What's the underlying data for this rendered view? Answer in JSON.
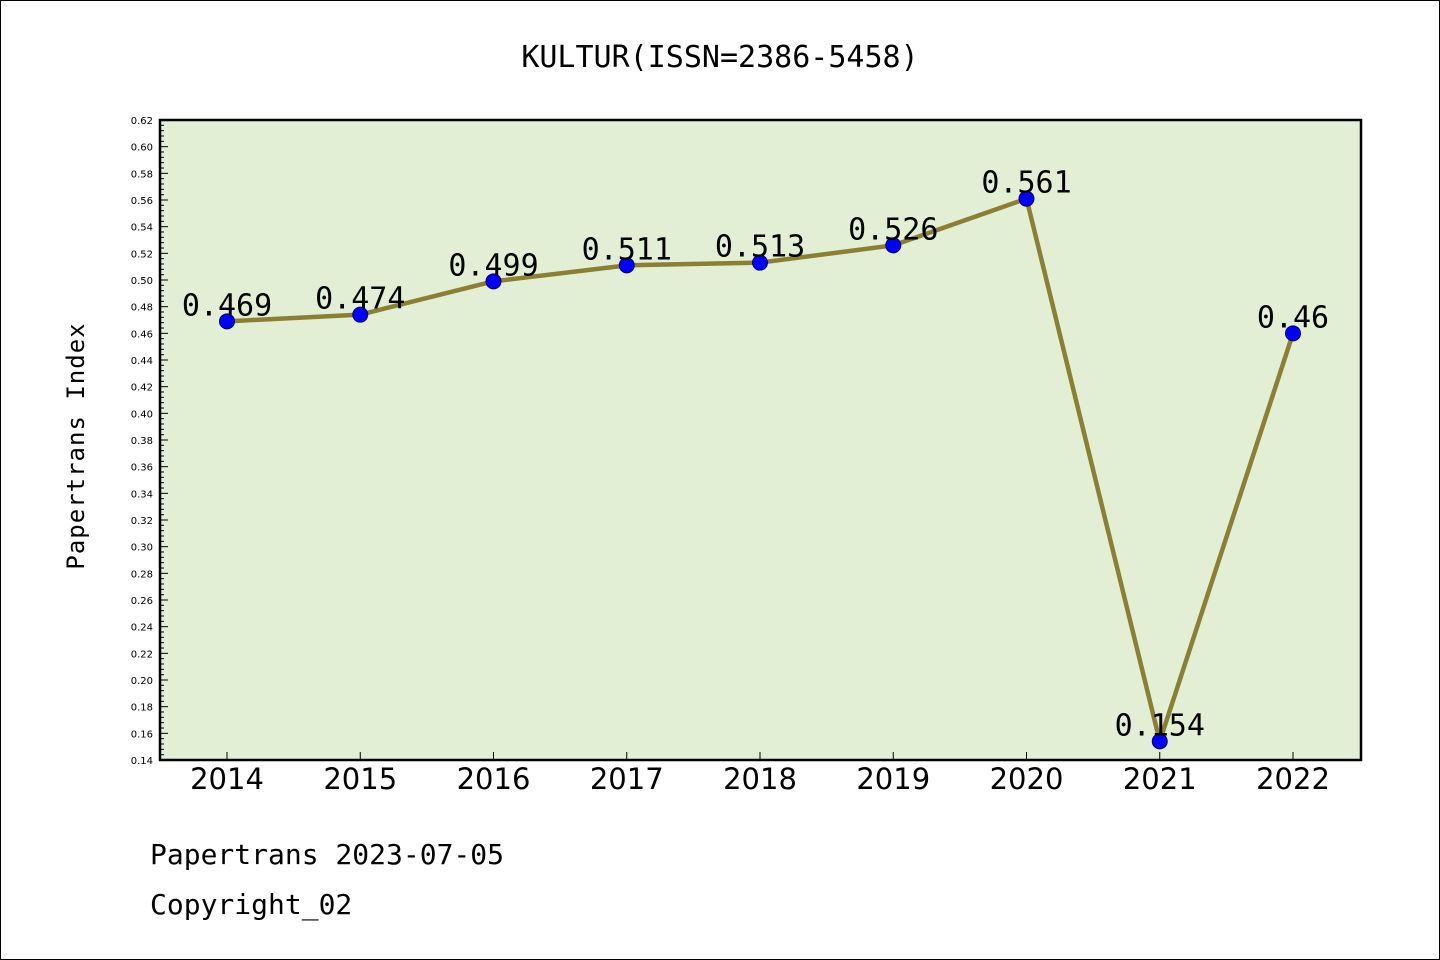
{
  "colors": {
    "plot_background": "#e2efd5",
    "line": "#8b7f33",
    "marker": "#0000ff",
    "axis": "#000000"
  },
  "footer": {
    "line1": "Papertrans 2023-07-05",
    "line2": "Copyright_02"
  },
  "chart_data": {
    "type": "line",
    "title": "KULTUR(ISSN=2386-5458)",
    "xlabel": "",
    "ylabel": "Papertrans Index",
    "categories": [
      "2014",
      "2015",
      "2016",
      "2017",
      "2018",
      "2019",
      "2020",
      "2021",
      "2022"
    ],
    "series": [
      {
        "values": [
          0.469,
          0.474,
          0.499,
          0.511,
          0.513,
          0.526,
          0.561,
          0.154,
          0.46
        ],
        "data_labels": [
          "0.469",
          "0.474",
          "0.499",
          "0.511",
          "0.513",
          "0.526",
          "0.561",
          "0.154",
          "0.46"
        ]
      }
    ],
    "ylim": [
      0.14,
      0.62
    ],
    "yticks": [
      "0.14",
      "0.16",
      "0.18",
      "0.20",
      "0.22",
      "0.24",
      "0.26",
      "0.28",
      "0.30",
      "0.32",
      "0.34",
      "0.36",
      "0.38",
      "0.40",
      "0.42",
      "0.44",
      "0.46",
      "0.48",
      "0.50",
      "0.52",
      "0.54",
      "0.56",
      "0.58",
      "0.60",
      "0.62"
    ],
    "grid": false,
    "legend": "none"
  }
}
